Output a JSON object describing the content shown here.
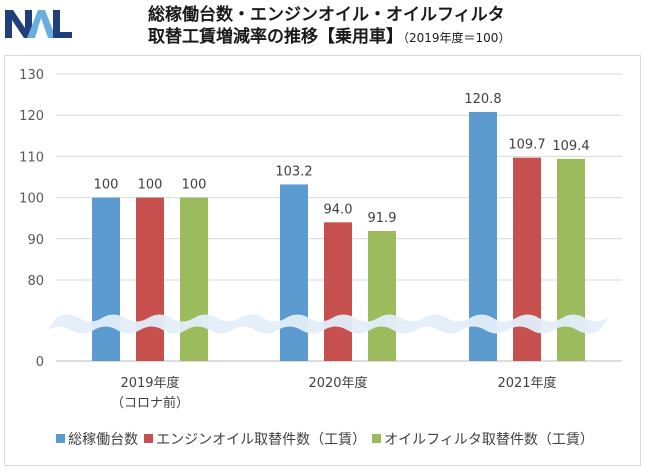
{
  "brand": {
    "logo_text": "NAL",
    "logo_colors": [
      "#1f3f7a",
      "#6aaee0"
    ]
  },
  "chart_data": {
    "type": "bar",
    "title": "総稼働台数・エンジンオイル・オイルフィルタ",
    "title_line2": "取替工賃増減率の推移【乗用車】",
    "subtitle": "（2019年度＝100）",
    "categories": [
      "2019年度",
      "2020年度",
      "2021年度"
    ],
    "category_sublabels": [
      "（コロナ前）",
      "",
      ""
    ],
    "series": [
      {
        "name": "総稼働台数",
        "color": "#5b9bd0",
        "values": [
          100,
          103.2,
          120.8
        ],
        "labels": [
          "100",
          "103.2",
          "120.8"
        ]
      },
      {
        "name": "エンジンオイル取替件数（工賃）",
        "color": "#c5504e",
        "values": [
          100,
          94.0,
          109.7
        ],
        "labels": [
          "100",
          "94.0",
          "109.7"
        ]
      },
      {
        "name": "オイルフィルタ取替件数（工賃）",
        "color": "#9bbb5d",
        "values": [
          100,
          91.9,
          109.4
        ],
        "labels": [
          "100",
          "91.9",
          "109.4"
        ]
      }
    ],
    "yticks": [
      "0",
      "80",
      "90",
      "100",
      "110",
      "120",
      "130"
    ],
    "ylim": [
      0,
      130
    ],
    "axis_break": "between 0 and 80",
    "grid": true,
    "legend_position": "bottom",
    "xlabel": "",
    "ylabel": ""
  }
}
